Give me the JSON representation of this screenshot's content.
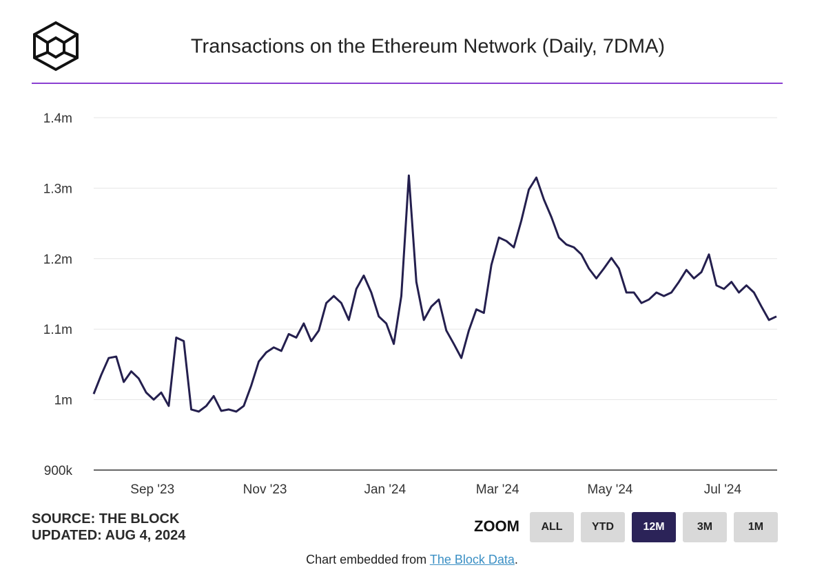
{
  "chart_data": {
    "type": "line",
    "title": "Transactions on the Ethereum Network (Daily, 7DMA)",
    "categories": [
      null,
      null,
      null,
      null,
      null,
      null,
      null,
      "Sep '23",
      null,
      null,
      null,
      null,
      null,
      null,
      null,
      null,
      null,
      null,
      null,
      null,
      null,
      null,
      "Nov '23",
      null,
      null,
      null,
      null,
      null,
      null,
      null,
      null,
      null,
      null,
      null,
      null,
      null,
      null,
      null,
      "Jan '24",
      null,
      null,
      null,
      null,
      null,
      null,
      null,
      null,
      null,
      null,
      null,
      null,
      null,
      null,
      "Mar '24",
      null,
      null,
      null,
      null,
      null,
      null,
      null,
      null,
      null,
      null,
      null,
      null,
      null,
      null,
      "May '24",
      null,
      null,
      null,
      null,
      null,
      null,
      null,
      null,
      null,
      null,
      null,
      null,
      null,
      null,
      "Jul '24",
      null,
      null,
      null,
      null,
      null,
      null,
      null,
      null
    ],
    "series": [
      {
        "color": "#241f4e",
        "values": [
          1008000,
          1035000,
          1059000,
          1061000,
          1025000,
          1040000,
          1030000,
          1010000,
          1000000,
          1010000,
          991000,
          1088000,
          1083000,
          986000,
          983000,
          991000,
          1005000,
          984000,
          986000,
          983000,
          991000,
          1020000,
          1054000,
          1067000,
          1074000,
          1069000,
          1093000,
          1088000,
          1108000,
          1083000,
          1098000,
          1137000,
          1147000,
          1137000,
          1113000,
          1157000,
          1176000,
          1152000,
          1118000,
          1108000,
          1079000,
          1147000,
          1318000,
          1167000,
          1113000,
          1132000,
          1142000,
          1098000,
          1079000,
          1059000,
          1098000,
          1128000,
          1123000,
          1191000,
          1230000,
          1225000,
          1216000,
          1254000,
          1298000,
          1315000,
          1284000,
          1259000,
          1230000,
          1220000,
          1216000,
          1206000,
          1186000,
          1172000,
          1186000,
          1201000,
          1186000,
          1152000,
          1152000,
          1137000,
          1142000,
          1152000,
          1147000,
          1152000,
          1167000,
          1184000,
          1172000,
          1181000,
          1206000,
          1162000,
          1157000,
          1167000,
          1152000,
          1162000,
          1152000,
          1132000,
          1113000,
          1118000
        ]
      }
    ],
    "ylim": [
      900000,
      1400000
    ],
    "yticks": [
      {
        "value": 900000,
        "label": "900k"
      },
      {
        "value": 1000000,
        "label": "1m"
      },
      {
        "value": 1100000,
        "label": "1.1m"
      },
      {
        "value": 1200000,
        "label": "1.2m"
      },
      {
        "value": 1300000,
        "label": "1.3m"
      },
      {
        "value": 1400000,
        "label": "1.4m"
      }
    ],
    "grid": true
  },
  "page": {
    "source": "SOURCE: THE BLOCK",
    "updated": "UPDATED: AUG 4, 2024",
    "zoom": "ZOOM",
    "buttons": [
      "ALL",
      "YTD",
      "12M",
      "3M",
      "1M"
    ],
    "active_button": "12M",
    "footer": {
      "text": "Chart embedded from ",
      "link": "The Block Data",
      "end": "."
    }
  }
}
